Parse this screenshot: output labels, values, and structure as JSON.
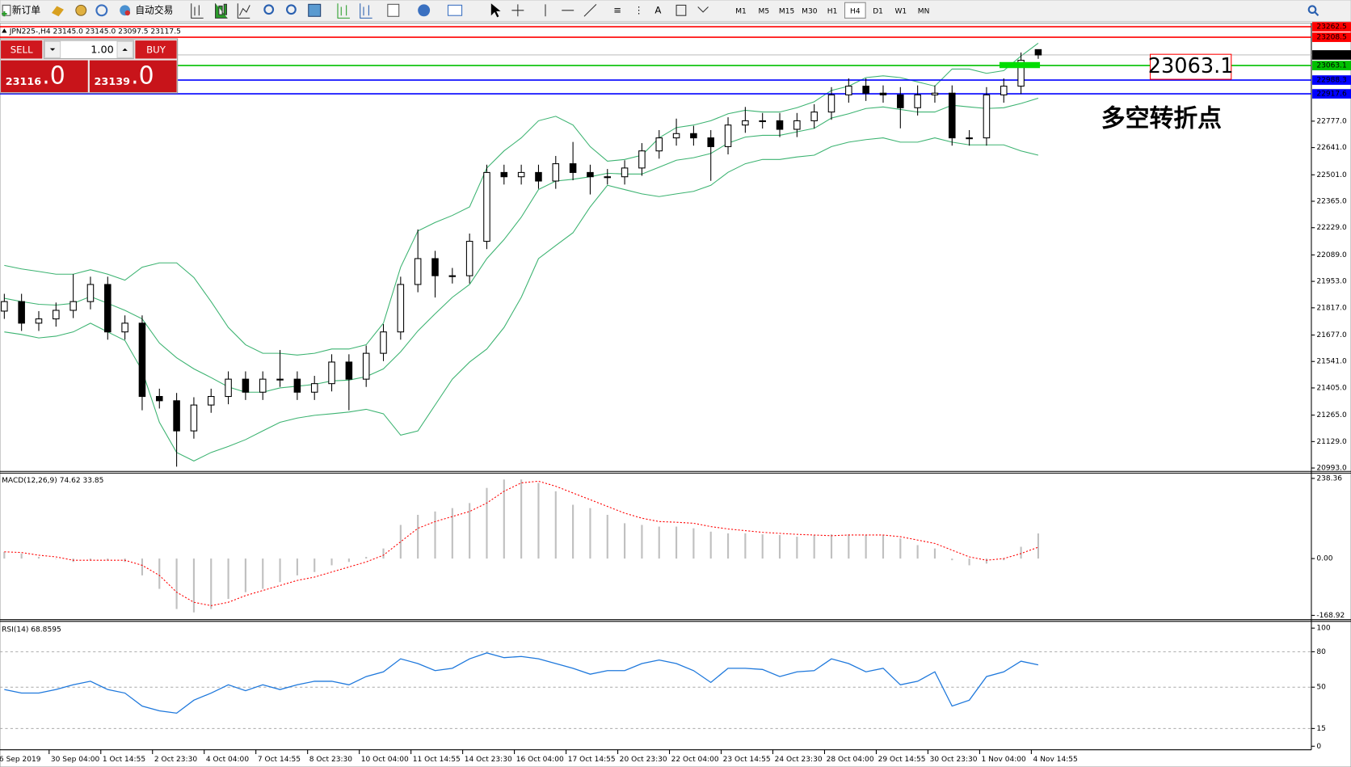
{
  "toolbar": {
    "new_order": "新订单",
    "auto_trading": "自动交易",
    "timeframes": [
      "M1",
      "M5",
      "M15",
      "M30",
      "H1",
      "H4",
      "D1",
      "W1",
      "MN"
    ],
    "active_timeframe": "H4"
  },
  "order_panel": {
    "sell": "SELL",
    "lot": "1.00",
    "buy": "BUY",
    "bid_main": "23116",
    "bid_frac": ".0",
    "ask_main": "23139",
    "ask_frac": ".0"
  },
  "chart_data": [
    {
      "type": "candlestick",
      "title": "JPN225-,H4",
      "ohlc_labels": [
        "23145.0",
        "23145.0",
        "23097.5",
        "23117.5"
      ],
      "categories": [
        "6 Sep 2019",
        null,
        null,
        "30 Sep 04:00",
        null,
        null,
        "1 Oct 14:55",
        null,
        null,
        "2 Oct 23:30",
        null,
        null,
        "4 Oct 04:00",
        null,
        null,
        "7 Oct 14:55",
        null,
        null,
        "8 Oct 23:30",
        null,
        null,
        "10 Oct 04:00",
        null,
        null,
        "11 Oct 14:55",
        null,
        null,
        "14 Oct 23:30",
        null,
        null,
        "16 Oct 04:00",
        null,
        null,
        "17 Oct 14:55",
        null,
        null,
        "20 Oct 23:30",
        null,
        null,
        "22 Oct 04:00",
        null,
        null,
        "23 Oct 14:55",
        null,
        null,
        "24 Oct 23:30",
        null,
        null,
        "28 Oct 04:00",
        null,
        null,
        "29 Oct 14:55",
        null,
        null,
        "30 Oct 23:30",
        null,
        null,
        "1 Nov 04:00",
        null,
        null,
        "4 Nov 14:55"
      ],
      "open": [
        21800,
        21849,
        21738,
        21760,
        21804,
        21849,
        21937,
        21693,
        21738,
        21361,
        21339,
        21184,
        21317,
        21361,
        21450,
        21383,
        21450,
        21450,
        21383,
        21427,
        21538,
        21450,
        21583,
        21693,
        21937,
        22070,
        21982,
        21982,
        22159,
        22513,
        22491,
        22513,
        22469,
        22558,
        22513,
        22491,
        22491,
        22536,
        22624,
        22691,
        22713,
        22691,
        22646,
        22757,
        22779,
        22779,
        22735,
        22779,
        22824,
        22912,
        22957,
        22921,
        22912,
        22846,
        22912,
        22921,
        22691,
        22691,
        22912,
        22957,
        23145
      ],
      "high": [
        21889,
        21889,
        21800,
        21844,
        21990,
        21977,
        21977,
        21778,
        21778,
        21401,
        21379,
        21357,
        21401,
        21490,
        21490,
        21490,
        21600,
        21490,
        21467,
        21578,
        21578,
        21623,
        21733,
        21977,
        22220,
        22110,
        22022,
        22199,
        22553,
        22553,
        22553,
        22553,
        22598,
        22670,
        22553,
        22531,
        22576,
        22664,
        22731,
        22790,
        22753,
        22731,
        22797,
        22850,
        22819,
        22819,
        22819,
        22864,
        22952,
        22997,
        22997,
        22961,
        22952,
        22961,
        22961,
        22961,
        22731,
        22952,
        22997,
        23130,
        23145
      ],
      "low": [
        21760,
        21698,
        21698,
        21720,
        21764,
        21809,
        21653,
        21653,
        21290,
        21299,
        21000,
        21144,
        21277,
        21321,
        21343,
        21343,
        21410,
        21343,
        21343,
        21387,
        21290,
        21410,
        21543,
        21653,
        21897,
        21870,
        21942,
        21942,
        22119,
        22451,
        22451,
        22429,
        22429,
        22473,
        22400,
        22451,
        22451,
        22496,
        22584,
        22651,
        22651,
        22470,
        22606,
        22717,
        22739,
        22695,
        22695,
        22739,
        22784,
        22872,
        22881,
        22872,
        22740,
        22806,
        22872,
        22651,
        22651,
        22651,
        22872,
        22917,
        23097.5
      ],
      "close": [
        21849,
        21738,
        21760,
        21804,
        21849,
        21937,
        21693,
        21738,
        21361,
        21339,
        21184,
        21317,
        21361,
        21450,
        21383,
        21450,
        21450,
        21383,
        21427,
        21538,
        21450,
        21583,
        21693,
        21937,
        22070,
        21982,
        21982,
        22159,
        22513,
        22491,
        22513,
        22469,
        22558,
        22513,
        22491,
        22491,
        22536,
        22624,
        22691,
        22713,
        22691,
        22646,
        22757,
        22779,
        22779,
        22735,
        22779,
        22824,
        22912,
        22957,
        22921,
        22912,
        22846,
        22912,
        22921,
        22691,
        22691,
        22912,
        22957,
        23090,
        23117.5
      ],
      "series": [
        {
          "color": "#3cb371",
          "values": [
            22035,
            22017,
            22004,
            21990,
            21990,
            22013,
            21990,
            21959,
            22026,
            22048,
            22048,
            21973,
            21849,
            21716,
            21627,
            21583,
            21583,
            21574,
            21583,
            21605,
            21605,
            21627,
            21738,
            22026,
            22212,
            22256,
            22292,
            22336,
            22536,
            22624,
            22691,
            22779,
            22802,
            22757,
            22646,
            22571,
            22580,
            22602,
            22691,
            22744,
            22757,
            22779,
            22815,
            22833,
            22824,
            22824,
            22846,
            22877,
            22935,
            22957,
            23001,
            23010,
            23001,
            22979,
            22957,
            23045,
            23045,
            23023,
            23037,
            23112,
            23178
          ]
        },
        {
          "color": "#3cb371",
          "values": [
            21866,
            21849,
            21835,
            21831,
            21840,
            21875,
            21840,
            21804,
            21760,
            21636,
            21560,
            21503,
            21458,
            21410,
            21383,
            21383,
            21405,
            21414,
            21423,
            21441,
            21445,
            21463,
            21503,
            21591,
            21698,
            21786,
            21871,
            21937,
            22070,
            22168,
            22283,
            22425,
            22469,
            22478,
            22491,
            22509,
            22505,
            22505,
            22540,
            22576,
            22589,
            22611,
            22664,
            22695,
            22704,
            22704,
            22722,
            22740,
            22793,
            22815,
            22842,
            22850,
            22837,
            22824,
            22824,
            22859,
            22850,
            22842,
            22846,
            22868,
            22895
          ]
        },
        {
          "color": "#3cb371",
          "values": [
            21693,
            21680,
            21662,
            21671,
            21693,
            21738,
            21693,
            21649,
            21494,
            21228,
            21073,
            21029,
            21073,
            21104,
            21139,
            21184,
            21228,
            21250,
            21264,
            21272,
            21281,
            21295,
            21272,
            21162,
            21184,
            21317,
            21450,
            21538,
            21605,
            21716,
            21871,
            22070,
            22137,
            22203,
            22336,
            22447,
            22425,
            22403,
            22389,
            22403,
            22416,
            22447,
            22514,
            22558,
            22580,
            22580,
            22593,
            22602,
            22646,
            22669,
            22682,
            22691,
            22669,
            22669,
            22691,
            22669,
            22655,
            22655,
            22655,
            22624,
            22602
          ]
        }
      ],
      "ylim": [
        20980,
        23276
      ],
      "yticks": [
        {
          "value": 22777,
          "label": "22777.0"
        },
        {
          "value": 22641,
          "label": "22641.0"
        },
        {
          "value": 22501,
          "label": "22501.0"
        },
        {
          "value": 22365,
          "label": "22365.0"
        },
        {
          "value": 22229,
          "label": "22229.0"
        },
        {
          "value": 22089,
          "label": "22089.0"
        },
        {
          "value": 21953,
          "label": "21953.0"
        },
        {
          "value": 21817,
          "label": "21817.0"
        },
        {
          "value": 21677,
          "label": "21677.0"
        },
        {
          "value": 21541,
          "label": "21541.0"
        },
        {
          "value": 21405,
          "label": "21405.0"
        },
        {
          "value": 21265,
          "label": "21265.0"
        },
        {
          "value": 21129,
          "label": "21129.0"
        },
        {
          "value": 20993,
          "label": "20993.0"
        }
      ],
      "hlines": [
        {
          "value": 23262.5,
          "color": "#ff0000"
        },
        {
          "value": 23208.5,
          "color": "#ff0000"
        },
        {
          "value": 23063.1,
          "color": "#00c000"
        },
        {
          "value": 22988.3,
          "color": "#0000ff"
        },
        {
          "value": 22917.6,
          "color": "#0000ff"
        }
      ],
      "current_price": 23117.5,
      "annotations": [
        {
          "text": "23063.1",
          "color": "#ff0000"
        },
        {
          "text": "多空转折点",
          "color": "#1aa31a"
        }
      ]
    },
    {
      "type": "macd",
      "label": "MACD(12,26,9)",
      "series": [
        {
          "color": "#c0c0c0",
          "values": [
            20,
            15,
            5,
            0,
            -10,
            -5,
            -5,
            -10,
            -50,
            -90,
            -150,
            -160,
            -150,
            -120,
            -100,
            -90,
            -70,
            -50,
            -40,
            -20,
            -10,
            5,
            30,
            100,
            130,
            140,
            150,
            165,
            210,
            235,
            235,
            225,
            200,
            160,
            150,
            130,
            105,
            100,
            95,
            95,
            90,
            80,
            75,
            75,
            72,
            70,
            65,
            70,
            72,
            72,
            70,
            70,
            60,
            40,
            30,
            -5,
            -20,
            -15,
            -5,
            35,
            74.62
          ]
        },
        {
          "color": "#ff0000",
          "values": [
            20,
            18,
            10,
            5,
            -5,
            -5,
            -5,
            -5,
            -20,
            -50,
            -100,
            -130,
            -140,
            -130,
            -110,
            -95,
            -80,
            -65,
            -55,
            -40,
            -25,
            -10,
            10,
            50,
            90,
            110,
            125,
            140,
            165,
            200,
            225,
            230,
            215,
            195,
            175,
            155,
            135,
            120,
            110,
            108,
            105,
            95,
            88,
            83,
            78,
            75,
            72,
            70,
            68,
            70,
            70,
            70,
            65,
            55,
            45,
            25,
            5,
            -5,
            0,
            15,
            33.85
          ]
        }
      ],
      "ylim": [
        -179,
        254
      ],
      "yticks": [
        238.36,
        {
          "value": 0,
          "label": "0.00"
        },
        -168.92
      ]
    },
    {
      "type": "line",
      "label": "RSI(14)",
      "color": "#1e78dc",
      "values": [
        48,
        45,
        45,
        48,
        52,
        55,
        48,
        45,
        34,
        30,
        28,
        39,
        45,
        52,
        47,
        52,
        48,
        52,
        55,
        55,
        52,
        59,
        63,
        74,
        70,
        64,
        66,
        74,
        79,
        75,
        76,
        74,
        70,
        66,
        61,
        64,
        64,
        70,
        73,
        70,
        64,
        54,
        66,
        66,
        65,
        59,
        63,
        64,
        74,
        70,
        63,
        66,
        52,
        55,
        63,
        34,
        39,
        59,
        63,
        72,
        68.8595
      ],
      "ylim": [
        -3,
        105
      ],
      "yticks": [
        100,
        80,
        50,
        15,
        0
      ],
      "levels": [
        80,
        50,
        15
      ]
    }
  ]
}
